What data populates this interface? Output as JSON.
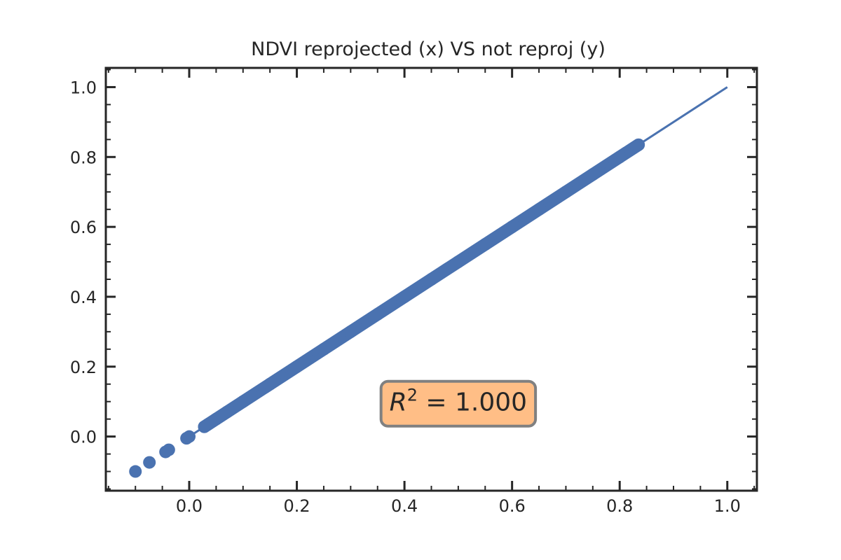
{
  "chart_data": {
    "type": "scatter",
    "title": "NDVI reprojected (x) VS not reproj (y)",
    "xlabel": "",
    "ylabel": "",
    "xlim": [
      -0.155,
      1.055
    ],
    "ylim": [
      -0.155,
      1.055
    ],
    "x_ticks": [
      0.0,
      0.2,
      0.4,
      0.6,
      0.8,
      1.0
    ],
    "x_tick_labels": [
      "0.0",
      "0.2",
      "0.4",
      "0.6",
      "0.8",
      "1.0"
    ],
    "y_ticks": [
      0.0,
      0.2,
      0.4,
      0.6,
      0.8,
      1.0
    ],
    "y_tick_labels": [
      "0.0",
      "0.2",
      "0.4",
      "0.6",
      "0.8",
      "1.0"
    ],
    "x_minor_step": 0.05,
    "y_minor_step": 0.05,
    "grid": false,
    "colors": {
      "points": "#4a72b0",
      "line": "#4a72b0",
      "axes": "#262626",
      "annotation_fill": "#ffbe86",
      "annotation_border": "#808080"
    },
    "series": [
      {
        "type": "scatter",
        "x": [
          -0.1,
          -0.074,
          -0.044,
          -0.038,
          -0.005,
          0.0,
          0.028,
          0.035,
          0.05,
          0.07,
          0.1,
          0.15,
          0.2,
          0.25,
          0.3,
          0.35,
          0.4,
          0.45,
          0.5,
          0.55,
          0.6,
          0.65,
          0.7,
          0.75,
          0.8,
          0.835
        ],
        "y": [
          -0.1,
          -0.074,
          -0.044,
          -0.038,
          -0.005,
          0.0,
          0.028,
          0.035,
          0.05,
          0.07,
          0.1,
          0.15,
          0.2,
          0.25,
          0.3,
          0.35,
          0.4,
          0.45,
          0.5,
          0.55,
          0.6,
          0.65,
          0.7,
          0.75,
          0.8,
          0.835
        ],
        "dense_segment": [
          0.028,
          0.835
        ]
      },
      {
        "type": "line",
        "x": [
          0.0,
          1.0
        ],
        "y": [
          0.0,
          1.0
        ]
      }
    ],
    "annotation": {
      "r_symbol": "R",
      "exponent": "2",
      "value_text": " = 1.000",
      "x": 0.5,
      "y": 0.1
    }
  }
}
